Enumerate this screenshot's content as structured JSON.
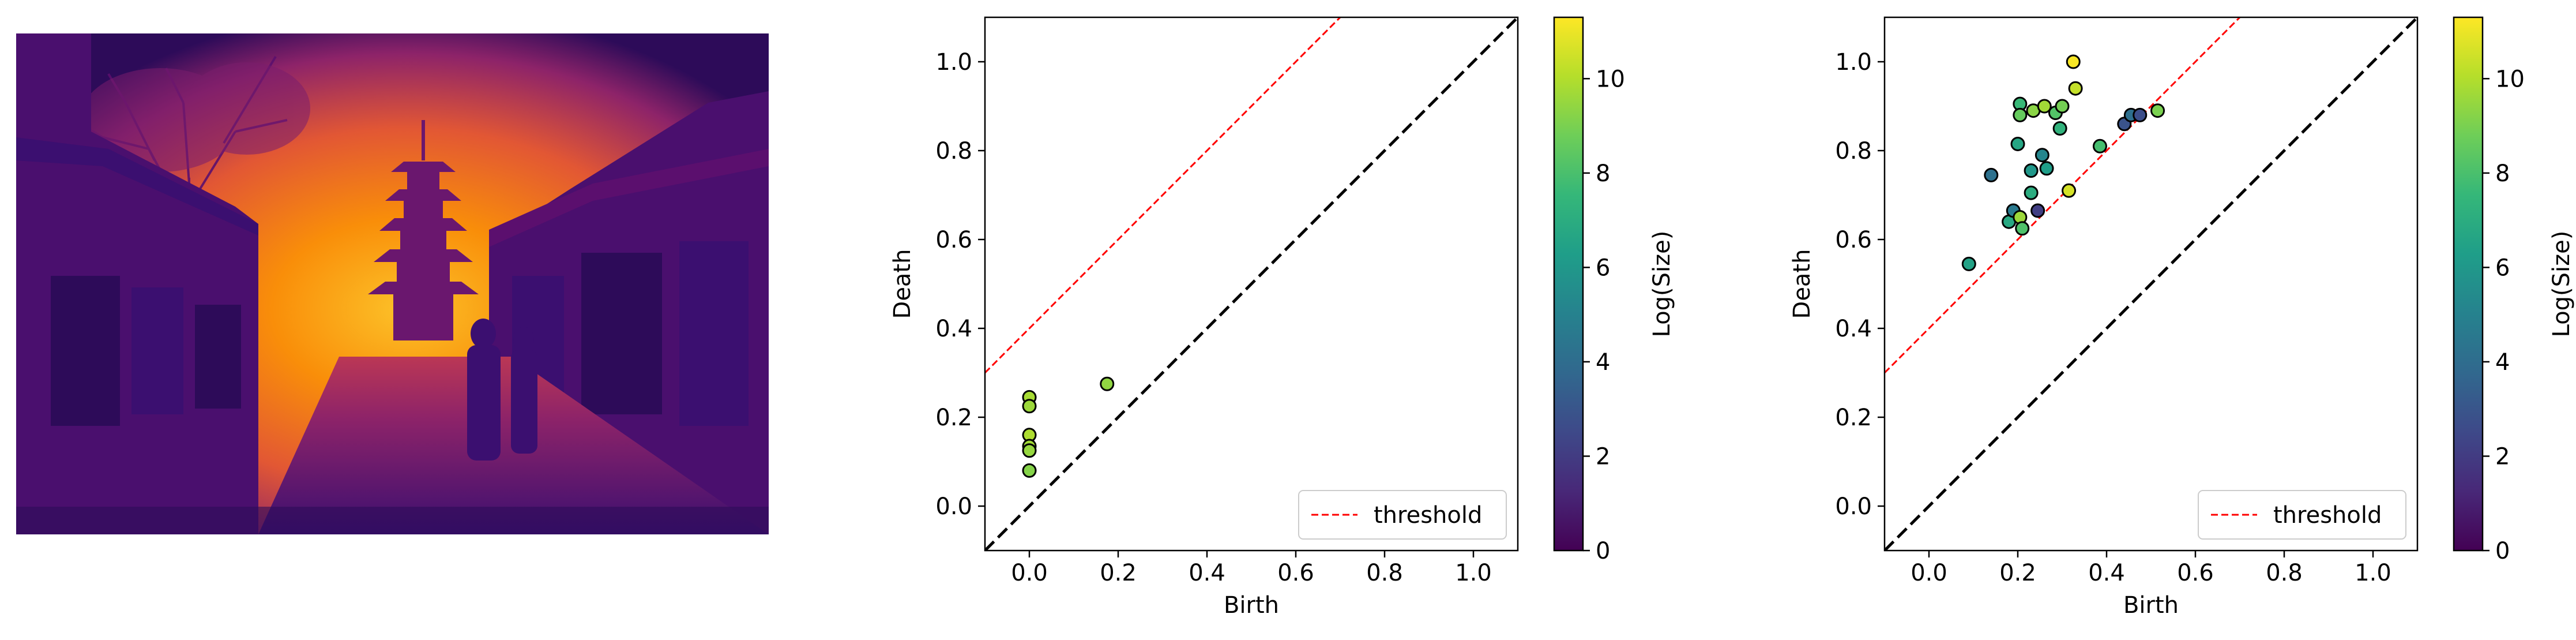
{
  "colors": {
    "scatter_cmap": [
      "#440154",
      "#482878",
      "#3e4989",
      "#31688e",
      "#26828e",
      "#1f9e89",
      "#35b779",
      "#6ece58",
      "#b5de2b",
      "#fde725"
    ],
    "photo_cmap": [
      "#000004",
      "#2d0b59",
      "#5b0f6e",
      "#8d2369",
      "#bb3755",
      "#e25734",
      "#f98e09",
      "#fcc229",
      "#fcffa4"
    ],
    "threshold_line": "#ff0000",
    "diagonal_line": "#000000",
    "marker_edge": "#000000"
  },
  "image_panel": {
    "content": "street-scene-with-pagoda-inferno-colormap"
  },
  "chart_data": [
    {
      "type": "scatter",
      "xlabel": "Birth",
      "ylabel": "Death",
      "xlim": [
        -0.1,
        1.1
      ],
      "ylim": [
        -0.1,
        1.1
      ],
      "xticks": [
        "0.0",
        "0.2",
        "0.4",
        "0.6",
        "0.8",
        "1.0"
      ],
      "yticks": [
        "0.0",
        "0.2",
        "0.4",
        "0.6",
        "0.8",
        "1.0"
      ],
      "grid": false,
      "legend": {
        "label": "threshold",
        "position": "lower-right"
      },
      "threshold": {
        "slope": 1,
        "intercept": 0.4
      },
      "diagonal": true,
      "colorbar": {
        "label": "Log(Size)",
        "range": [
          0,
          11.3
        ],
        "ticks": [
          "0",
          "2",
          "4",
          "6",
          "8",
          "10"
        ]
      },
      "points": [
        {
          "x": 0.0,
          "y": 0.245,
          "c": 9.8
        },
        {
          "x": 0.0,
          "y": 0.225,
          "c": 9.6
        },
        {
          "x": 0.0,
          "y": 0.16,
          "c": 9.9
        },
        {
          "x": 0.0,
          "y": 0.135,
          "c": 9.7
        },
        {
          "x": 0.0,
          "y": 0.125,
          "c": 9.5
        },
        {
          "x": 0.0,
          "y": 0.08,
          "c": 9.2
        },
        {
          "x": 0.175,
          "y": 0.275,
          "c": 9.4
        }
      ]
    },
    {
      "type": "scatter",
      "xlabel": "Birth",
      "ylabel": "Death",
      "xlim": [
        -0.1,
        1.1
      ],
      "ylim": [
        -0.1,
        1.1
      ],
      "xticks": [
        "0.0",
        "0.2",
        "0.4",
        "0.6",
        "0.8",
        "1.0"
      ],
      "yticks": [
        "0.0",
        "0.2",
        "0.4",
        "0.6",
        "0.8",
        "1.0"
      ],
      "grid": false,
      "legend": {
        "label": "threshold",
        "position": "lower-right"
      },
      "threshold": {
        "slope": 1,
        "intercept": 0.4
      },
      "diagonal": true,
      "colorbar": {
        "label": "Log(Size)",
        "range": [
          0,
          11.3
        ],
        "ticks": [
          "0",
          "2",
          "4",
          "6",
          "8",
          "10"
        ]
      },
      "points": [
        {
          "x": 0.09,
          "y": 0.545,
          "c": 6.5
        },
        {
          "x": 0.14,
          "y": 0.745,
          "c": 4.2
        },
        {
          "x": 0.18,
          "y": 0.64,
          "c": 6.8
        },
        {
          "x": 0.19,
          "y": 0.665,
          "c": 4.6
        },
        {
          "x": 0.205,
          "y": 0.65,
          "c": 9.6
        },
        {
          "x": 0.21,
          "y": 0.625,
          "c": 8.1
        },
        {
          "x": 0.2,
          "y": 0.815,
          "c": 6.7
        },
        {
          "x": 0.205,
          "y": 0.905,
          "c": 7.6
        },
        {
          "x": 0.205,
          "y": 0.88,
          "c": 8.6
        },
        {
          "x": 0.23,
          "y": 0.755,
          "c": 6.0
        },
        {
          "x": 0.23,
          "y": 0.705,
          "c": 7.0
        },
        {
          "x": 0.235,
          "y": 0.89,
          "c": 9.3
        },
        {
          "x": 0.245,
          "y": 0.665,
          "c": 2.1
        },
        {
          "x": 0.255,
          "y": 0.79,
          "c": 5.2
        },
        {
          "x": 0.26,
          "y": 0.9,
          "c": 9.7
        },
        {
          "x": 0.265,
          "y": 0.76,
          "c": 6.3
        },
        {
          "x": 0.285,
          "y": 0.885,
          "c": 8.2
        },
        {
          "x": 0.295,
          "y": 0.85,
          "c": 7.3
        },
        {
          "x": 0.3,
          "y": 0.9,
          "c": 8.9
        },
        {
          "x": 0.315,
          "y": 0.71,
          "c": 10.6
        },
        {
          "x": 0.325,
          "y": 1.0,
          "c": 11.2
        },
        {
          "x": 0.33,
          "y": 0.94,
          "c": 10.3
        },
        {
          "x": 0.385,
          "y": 0.81,
          "c": 7.9
        },
        {
          "x": 0.44,
          "y": 0.86,
          "c": 2.9
        },
        {
          "x": 0.455,
          "y": 0.88,
          "c": 4.1
        },
        {
          "x": 0.475,
          "y": 0.88,
          "c": 2.7
        },
        {
          "x": 0.515,
          "y": 0.89,
          "c": 9.0
        }
      ]
    }
  ]
}
